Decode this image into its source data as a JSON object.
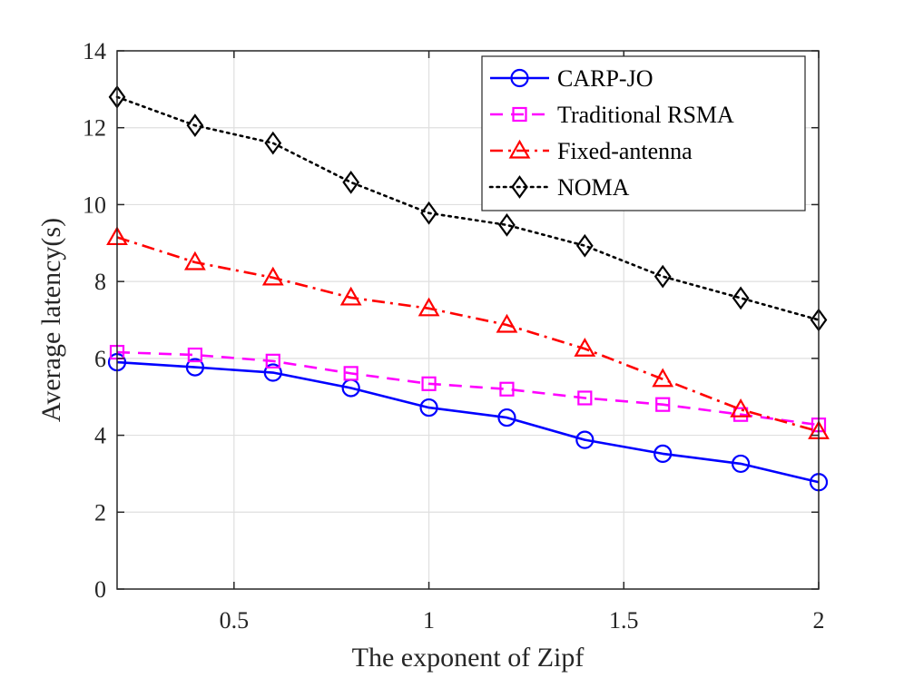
{
  "chart_data": {
    "type": "line",
    "xlabel": "The exponent of Zipf",
    "ylabel": "Average latency(s)",
    "xlim": [
      0.2,
      2
    ],
    "ylim": [
      0,
      14
    ],
    "xticks": [
      0.5,
      1,
      1.5,
      2
    ],
    "xtick_labels": [
      "0.5",
      "1",
      "1.5",
      "2"
    ],
    "yticks": [
      0,
      2,
      4,
      6,
      8,
      10,
      12,
      14
    ],
    "ytick_labels": [
      "0",
      "2",
      "4",
      "6",
      "8",
      "10",
      "12",
      "14"
    ],
    "grid": true,
    "legend_position": "top-right",
    "x": [
      0.2,
      0.4,
      0.6,
      0.8,
      1.0,
      1.2,
      1.4,
      1.6,
      1.8,
      2.0
    ],
    "series": [
      {
        "name": "CARP-JO",
        "color": "#0000ff",
        "marker": "circle",
        "line_style": "solid",
        "values": [
          5.9,
          5.77,
          5.63,
          5.23,
          4.72,
          4.46,
          3.88,
          3.52,
          3.26,
          2.78
        ]
      },
      {
        "name": "Traditional RSMA",
        "color": "#ff00ff",
        "marker": "square",
        "line_style": "dashed",
        "values": [
          6.16,
          6.09,
          5.93,
          5.61,
          5.34,
          5.2,
          4.97,
          4.8,
          4.54,
          4.27
        ]
      },
      {
        "name": "Fixed-antenna",
        "color": "#ff0000",
        "marker": "triangle",
        "line_style": "dashdot",
        "values": [
          9.15,
          8.5,
          8.1,
          7.58,
          7.3,
          6.87,
          6.25,
          5.46,
          4.67,
          4.1
        ]
      },
      {
        "name": "NOMA",
        "color": "#000000",
        "marker": "diamond",
        "line_style": "dotted",
        "values": [
          12.8,
          12.06,
          11.6,
          10.58,
          9.78,
          9.47,
          8.93,
          8.13,
          7.57,
          7.0
        ]
      }
    ]
  }
}
